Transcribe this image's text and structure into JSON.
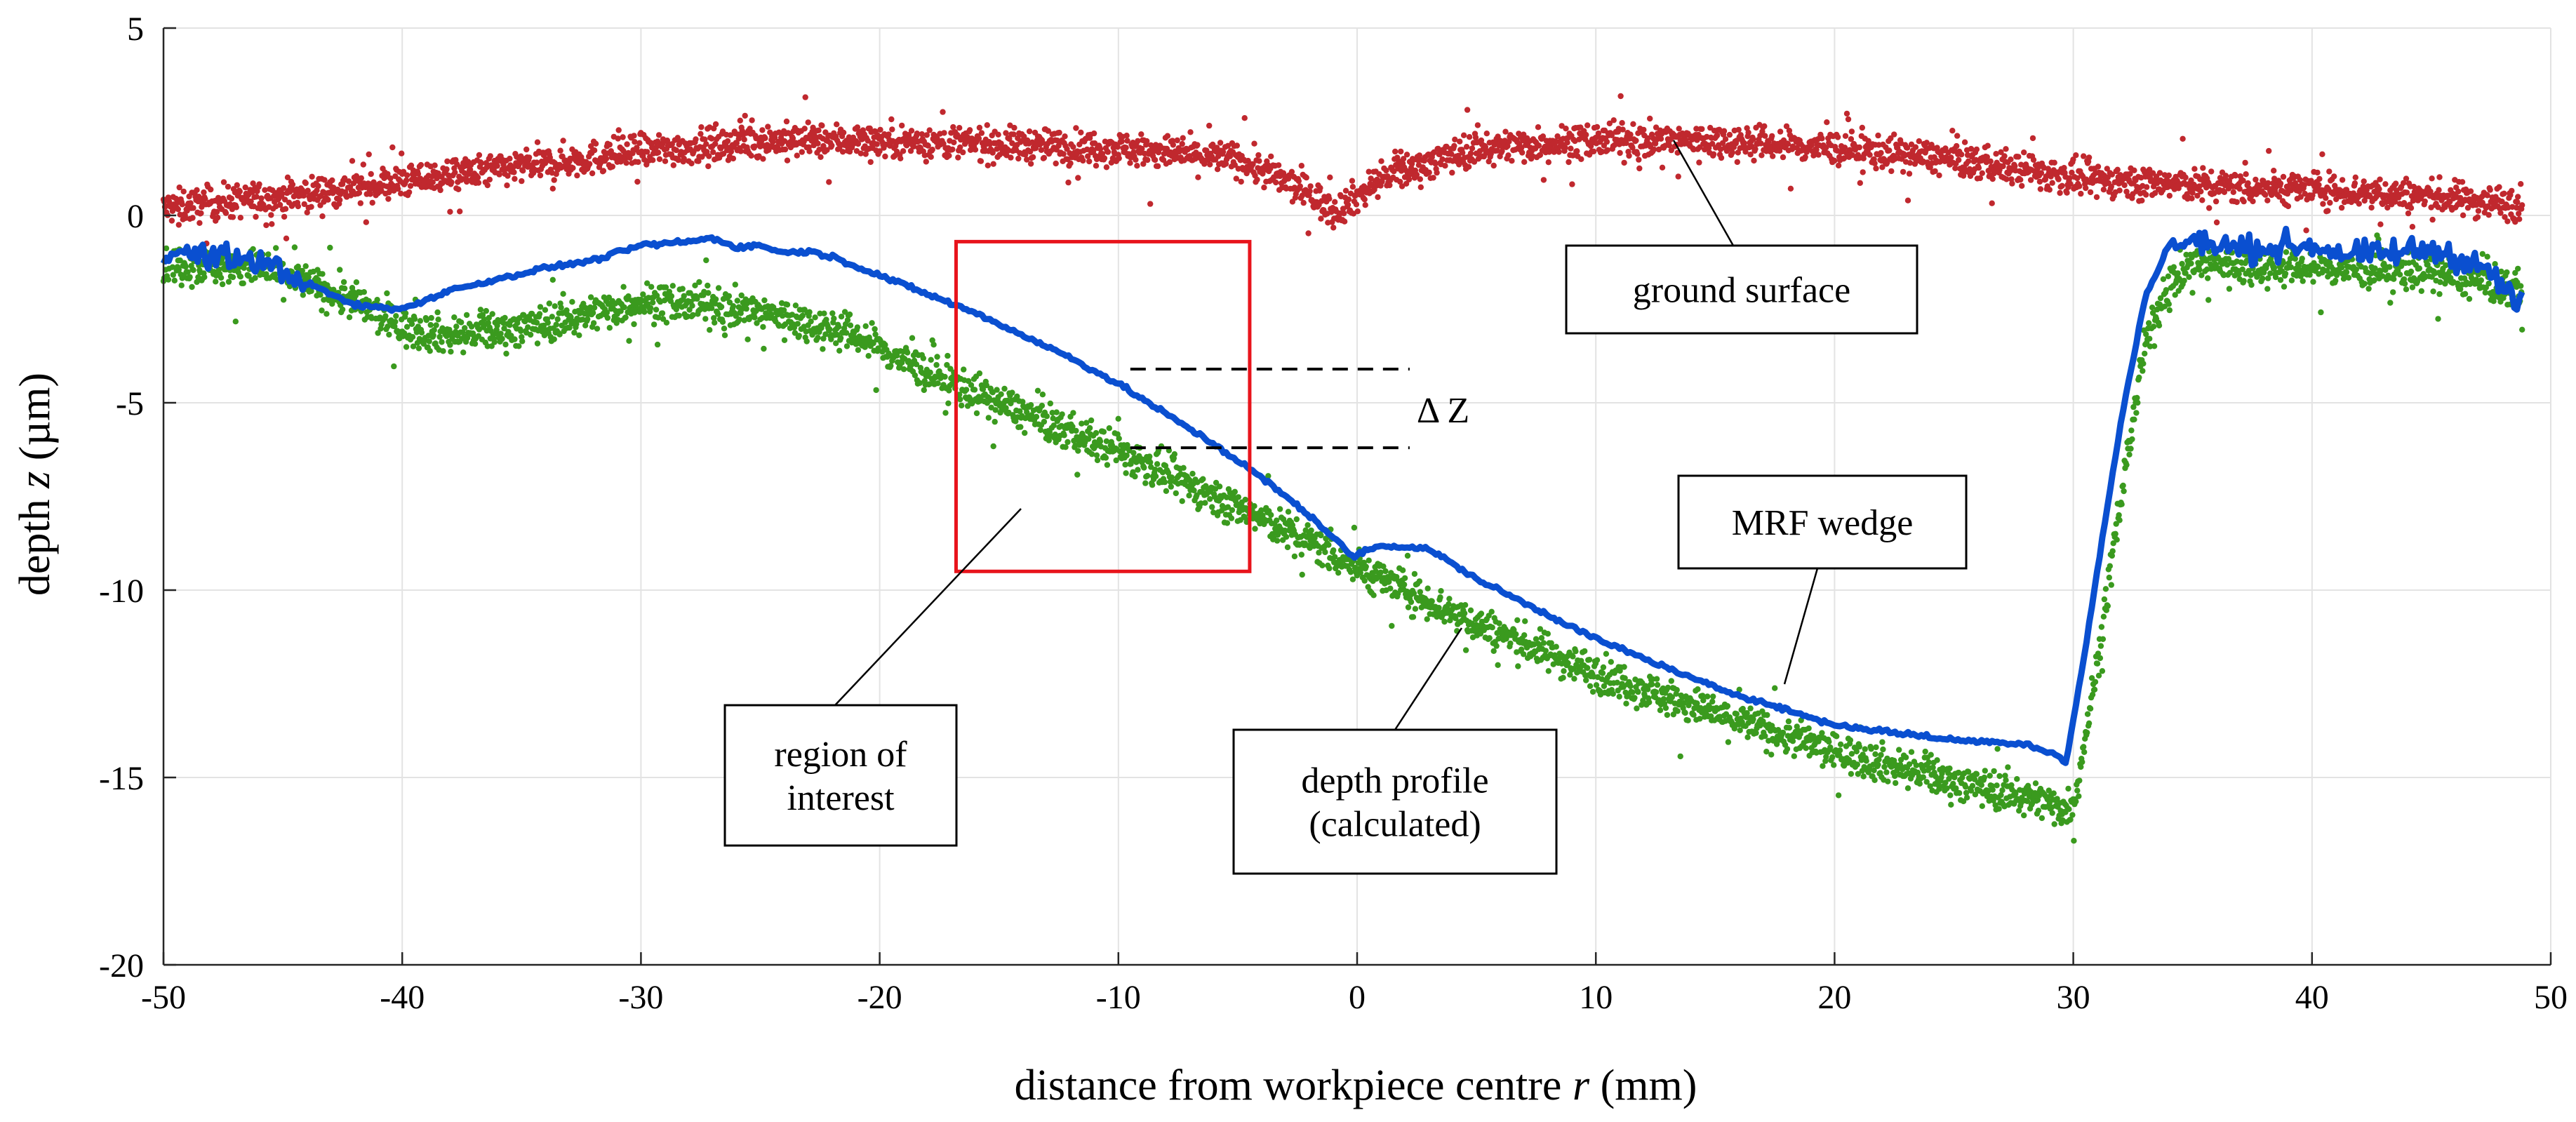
{
  "chart_data": {
    "type": "scatter",
    "title": "",
    "xlabel_prefix": "distance from workpiece centre ",
    "xlabel_var": "r",
    "xlabel_suffix": " (mm)",
    "ylabel_prefix": "depth ",
    "ylabel_var": "z",
    "ylabel_suffix": " (µm)",
    "xlim": [
      -50,
      50
    ],
    "ylim": [
      -20,
      5
    ],
    "xticks": [
      -50,
      -40,
      -30,
      -20,
      -10,
      0,
      10,
      20,
      30,
      40,
      50
    ],
    "yticks": [
      -20,
      -15,
      -10,
      -5,
      0,
      5
    ],
    "grid": true,
    "series": [
      {
        "name": "ground surface",
        "style": "points",
        "color": "#c0282e",
        "noise": 0.45,
        "x": [
          -50,
          -45,
          -40,
          -35,
          -30,
          -25,
          -20,
          -15,
          -10,
          -5,
          -2,
          -1,
          0,
          1,
          3,
          5,
          10,
          15,
          20,
          25,
          30,
          35,
          40,
          45,
          48.8
        ],
        "y": [
          0.2,
          0.5,
          0.9,
          1.3,
          1.7,
          2.0,
          2.0,
          1.9,
          1.8,
          1.5,
          0.6,
          0.1,
          0.5,
          1.0,
          1.4,
          1.8,
          2.0,
          2.0,
          1.8,
          1.5,
          1.0,
          0.8,
          0.7,
          0.5,
          0.3
        ]
      },
      {
        "name": "depth profile (calculated)",
        "style": "points",
        "color": "#3a9a1e",
        "noise": 0.5,
        "x": [
          -50,
          -46,
          -44,
          -42,
          -40,
          -38,
          -35,
          -32,
          -30,
          -27,
          -24,
          -21,
          -18,
          -15,
          -12,
          -10,
          -8,
          -6,
          -4,
          -2,
          0,
          5,
          10,
          15,
          20,
          25,
          28,
          29.5,
          30,
          31,
          32,
          33,
          34,
          35,
          40,
          45,
          48.8
        ],
        "y": [
          -1.3,
          -1.4,
          -1.8,
          -2.3,
          -3.0,
          -3.2,
          -3.0,
          -2.6,
          -2.3,
          -2.4,
          -2.7,
          -3.2,
          -4.2,
          -5.0,
          -5.8,
          -6.3,
          -6.9,
          -7.5,
          -8.1,
          -8.7,
          -9.4,
          -10.9,
          -12.2,
          -13.3,
          -14.3,
          -15.1,
          -15.5,
          -15.8,
          -15.8,
          -12.0,
          -7.5,
          -3.5,
          -1.8,
          -1.3,
          -1.4,
          -1.5,
          -2.0
        ]
      },
      {
        "name": "MRF wedge",
        "style": "line",
        "color": "#0a4fd0",
        "x": [
          -50,
          -46,
          -44,
          -42,
          -40,
          -38,
          -36,
          -34,
          -32,
          -30,
          -29,
          -28,
          -27,
          -26,
          -25,
          -24,
          -23,
          -22,
          -20,
          -18,
          -16,
          -14,
          -12,
          -10,
          -8,
          -6,
          -4,
          -2,
          -1,
          -0.2,
          1,
          3,
          5,
          10,
          15,
          20,
          25,
          28,
          29.3,
          29.7,
          30.4,
          31,
          32,
          33,
          34,
          35,
          37,
          40,
          42,
          45,
          47,
          48.8
        ],
        "y": [
          -1.0,
          -1.2,
          -1.8,
          -2.4,
          -2.5,
          -2.0,
          -1.7,
          -1.4,
          -1.2,
          -0.8,
          -0.75,
          -0.7,
          -0.6,
          -0.85,
          -0.8,
          -1.0,
          -0.95,
          -1.1,
          -1.6,
          -2.1,
          -2.6,
          -3.2,
          -3.8,
          -4.5,
          -5.3,
          -6.1,
          -7.0,
          -8.0,
          -8.6,
          -9.1,
          -8.8,
          -8.9,
          -9.7,
          -11.3,
          -12.6,
          -13.6,
          -14.0,
          -14.1,
          -14.4,
          -14.6,
          -12.0,
          -9.5,
          -5.5,
          -2.2,
          -0.8,
          -0.7,
          -0.9,
          -0.8,
          -1.1,
          -0.9,
          -1.3,
          -2.4
        ]
      }
    ],
    "annotations": [
      {
        "id": "ground",
        "lines": [
          "ground surface"
        ]
      },
      {
        "id": "mrf",
        "lines": [
          "MRF wedge"
        ]
      },
      {
        "id": "roi",
        "lines": [
          "region of",
          "interest"
        ]
      },
      {
        "id": "depth",
        "lines": [
          "depth profile",
          "(calculated)"
        ]
      }
    ],
    "region_of_interest": {
      "x": [
        -16.8,
        -4.5
      ],
      "y": [
        -9.5,
        -0.7
      ],
      "color": "#e8141c"
    },
    "delta_z": {
      "label": "Δ Z",
      "x_range": [
        -9.5,
        2.2
      ],
      "y_levels": [
        -4.1,
        -6.2
      ]
    }
  }
}
